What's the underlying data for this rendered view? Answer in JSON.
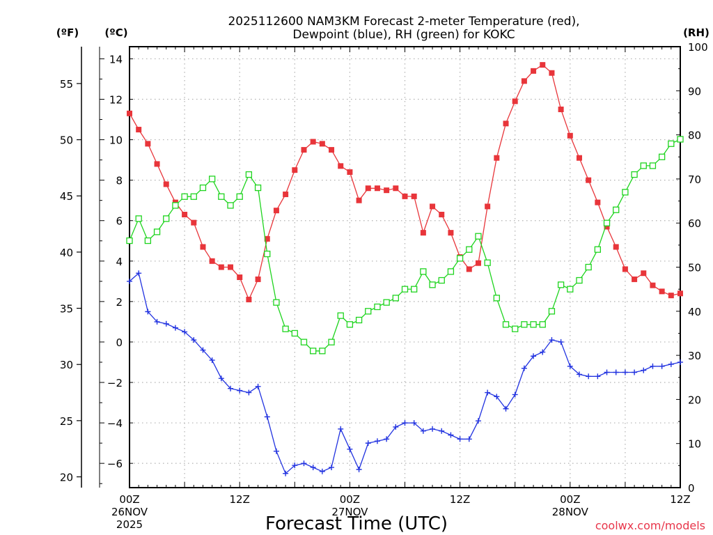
{
  "chart_data": {
    "type": "line",
    "title_line1": "2025112600 NAM3KM Forecast 2-meter Temperature (red),",
    "title_line2": "Dewpoint (blue), RH (green) for KOKC",
    "xlabel": "Forecast Time (UTC)",
    "credit": "coolwx.com/models",
    "units": {
      "fahrenheit": "(ºF)",
      "celsius": "(ºC)",
      "rh": "(RH)"
    },
    "x_ticks": [
      {
        "hour": 0,
        "line1": "00Z",
        "line2": "26NOV",
        "line3": "2025"
      },
      {
        "hour": 12,
        "line1": "12Z",
        "line2": "",
        "line3": ""
      },
      {
        "hour": 24,
        "line1": "00Z",
        "line2": "27NOV",
        "line3": ""
      },
      {
        "hour": 36,
        "line1": "12Z",
        "line2": "",
        "line3": ""
      },
      {
        "hour": 48,
        "line1": "00Z",
        "line2": "28NOV",
        "line3": ""
      },
      {
        "hour": 60,
        "line1": "12Z",
        "line2": "",
        "line3": ""
      }
    ],
    "xlim": [
      0,
      60
    ],
    "ylim_celsius": [
      -7.2,
      14.6
    ],
    "ylim_rh": [
      0,
      100
    ],
    "celsius_ticks": [
      "14",
      "12",
      "10",
      "8",
      "6",
      "4",
      "2",
      "0",
      "−2",
      "−4",
      "−6"
    ],
    "celsius_tick_values": [
      14,
      12,
      10,
      8,
      6,
      4,
      2,
      0,
      -2,
      -4,
      -6
    ],
    "fahrenheit_ticks": [
      "55",
      "50",
      "45",
      "40",
      "35",
      "30",
      "25",
      "20"
    ],
    "fahrenheit_tick_values": [
      55,
      50,
      45,
      40,
      35,
      30,
      25,
      20
    ],
    "rh_ticks": [
      "100",
      "90",
      "80",
      "70",
      "60",
      "50",
      "40",
      "30",
      "20",
      "10",
      "0"
    ],
    "rh_tick_values": [
      100,
      90,
      80,
      70,
      60,
      50,
      40,
      30,
      20,
      10,
      0
    ],
    "hours": [
      0,
      1,
      2,
      3,
      4,
      5,
      6,
      7,
      8,
      9,
      10,
      11,
      12,
      13,
      14,
      15,
      16,
      17,
      18,
      19,
      20,
      21,
      22,
      23,
      24,
      25,
      26,
      27,
      28,
      29,
      30,
      31,
      32,
      33,
      34,
      35,
      36,
      37,
      38,
      39,
      40,
      41,
      42,
      43,
      44,
      45,
      46,
      47,
      48,
      49,
      50,
      51,
      52,
      53,
      54,
      55,
      56,
      57,
      58,
      59,
      60
    ],
    "series": [
      {
        "name": "2-meter Temperature (ºC)",
        "color": "#e8353a",
        "axis": "celsius",
        "marker": "filled-square",
        "values": [
          11.3,
          10.5,
          9.8,
          8.8,
          7.8,
          6.9,
          6.3,
          5.9,
          4.7,
          4.0,
          3.7,
          3.7,
          3.2,
          2.1,
          3.1,
          5.1,
          6.5,
          7.3,
          8.5,
          9.5,
          9.9,
          9.8,
          9.5,
          8.7,
          8.4,
          7.0,
          7.6,
          7.6,
          7.5,
          7.6,
          7.2,
          7.2,
          5.4,
          6.7,
          6.3,
          5.4,
          4.2,
          3.6,
          3.9,
          6.7,
          9.1,
          10.8,
          11.9,
          12.9,
          13.4,
          13.7,
          13.3,
          11.5,
          10.2,
          9.1,
          8.0,
          6.9,
          5.7,
          4.7,
          3.6,
          3.1,
          3.4,
          2.8,
          2.5,
          2.3,
          2.4
        ]
      },
      {
        "name": "Dewpoint (ºC)",
        "color": "#2233e0",
        "axis": "celsius",
        "marker": "plus",
        "values": [
          3.0,
          3.4,
          1.5,
          1.0,
          0.9,
          0.7,
          0.5,
          0.1,
          -0.4,
          -0.9,
          -1.8,
          -2.3,
          -2.4,
          -2.5,
          -2.2,
          -3.7,
          -5.4,
          -6.5,
          -6.1,
          -6.0,
          -6.2,
          -6.4,
          -6.2,
          -4.3,
          -5.3,
          -6.3,
          -5.0,
          -4.9,
          -4.8,
          -4.2,
          -4.0,
          -4.0,
          -4.4,
          -4.3,
          -4.4,
          -4.6,
          -4.8,
          -4.8,
          -3.9,
          -2.5,
          -2.7,
          -3.3,
          -2.6,
          -1.3,
          -0.7,
          -0.5,
          0.1,
          0.0,
          -1.2,
          -1.6,
          -1.7,
          -1.7,
          -1.5,
          -1.5,
          -1.5,
          -1.5,
          -1.4,
          -1.2,
          -1.2,
          -1.1,
          -1.0
        ]
      },
      {
        "name": "Relative Humidity (%)",
        "color": "#1ed41e",
        "axis": "rh",
        "marker": "open-square",
        "values": [
          56,
          61,
          56,
          58,
          61,
          64,
          66,
          66,
          68,
          70,
          66,
          64,
          66,
          71,
          68,
          53,
          42,
          36,
          35,
          33,
          31,
          31,
          33,
          39,
          37,
          38,
          40,
          41,
          42,
          43,
          45,
          45,
          49,
          46,
          47,
          49,
          52,
          54,
          57,
          51,
          43,
          37,
          36,
          37,
          37,
          37,
          40,
          46,
          45,
          47,
          50,
          54,
          60,
          63,
          67,
          71,
          73,
          73,
          75,
          78,
          79
        ]
      }
    ]
  }
}
